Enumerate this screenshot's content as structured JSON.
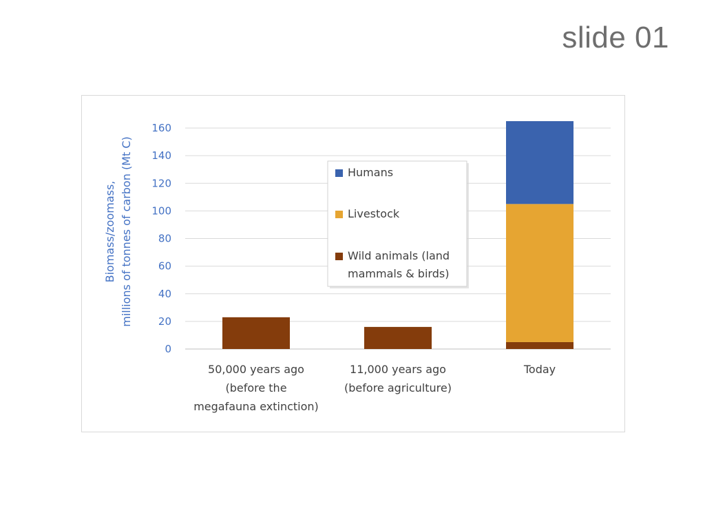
{
  "slide": {
    "label": "slide 01"
  },
  "chart_data": {
    "type": "bar",
    "stacked": true,
    "categories": [
      [
        "50,000 years ago",
        "(before the",
        "megafauna extinction)"
      ],
      [
        "11,000 years ago",
        "(before agriculture)"
      ],
      [
        "Today"
      ]
    ],
    "series": [
      {
        "name": "Wild animals (land mammals & birds)",
        "legend_lines": [
          "Wild animals (land",
          "mammals & birds)"
        ],
        "color": "#843c0c",
        "values": [
          23,
          16,
          5
        ]
      },
      {
        "name": "Livestock",
        "legend_lines": [
          "Livestock"
        ],
        "color": "#e6a532",
        "values": [
          0,
          0,
          100
        ]
      },
      {
        "name": "Humans",
        "legend_lines": [
          "Humans"
        ],
        "color": "#3a63ae",
        "values": [
          0,
          0,
          60
        ]
      }
    ],
    "legend_order": [
      2,
      1,
      0
    ],
    "ylabel": [
      "Biomass/zoomass,",
      "millions of tonnes of carbon (Mt C)"
    ],
    "ylim": [
      0,
      160
    ],
    "yticks": [
      0,
      20,
      40,
      60,
      80,
      100,
      120,
      140,
      160
    ],
    "grid": true,
    "legend_position": "center"
  }
}
